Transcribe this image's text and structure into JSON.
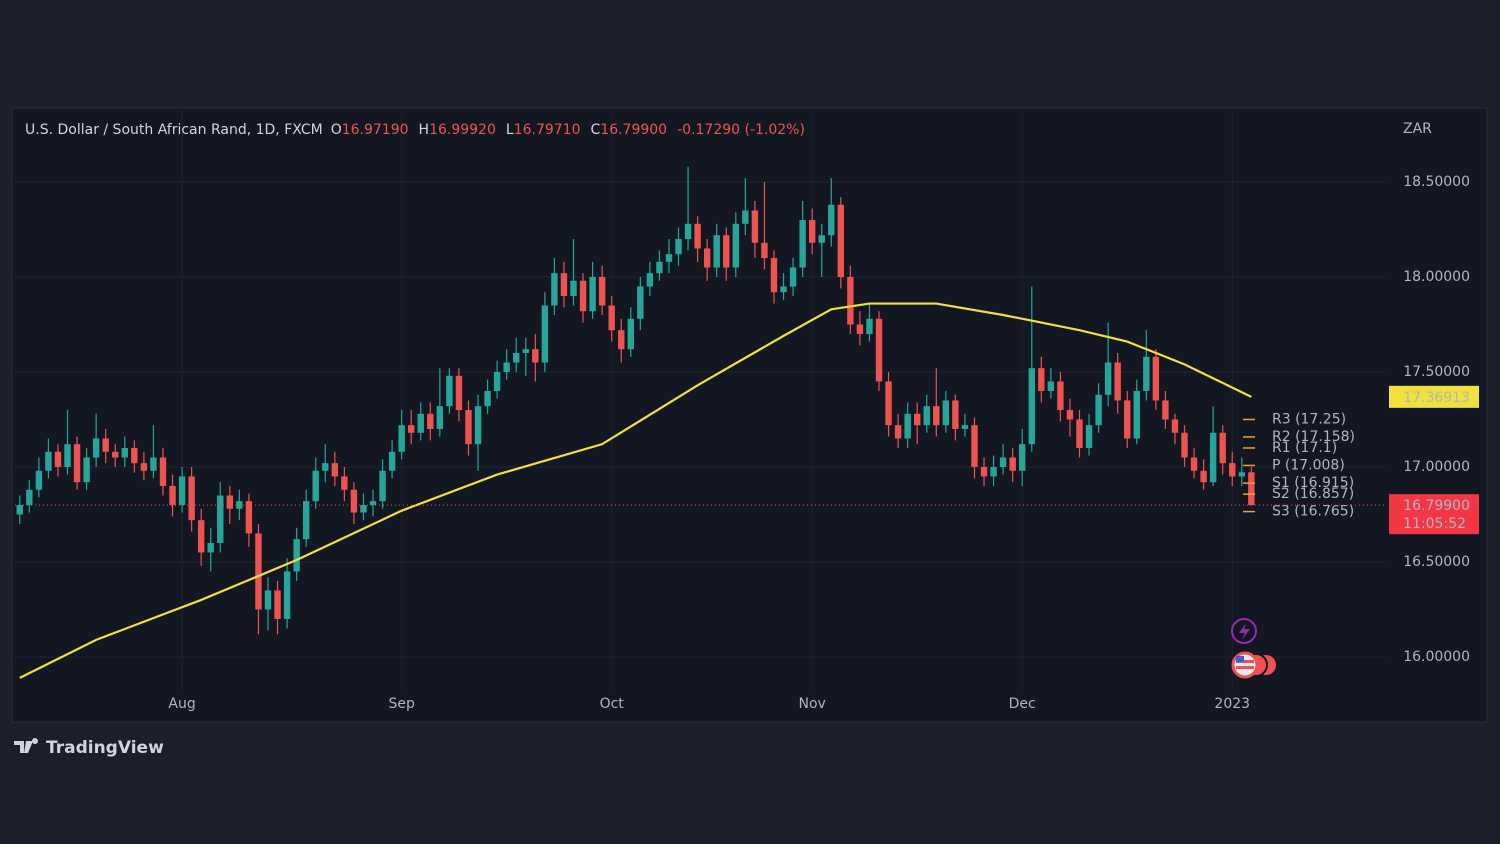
{
  "chart_data": {
    "type": "candlestick",
    "title": "U.S. Dollar / South African Rand, 1D, FXCM",
    "ohlc_legend": [
      {
        "key": "O",
        "value": "16.97190"
      },
      {
        "key": "H",
        "value": "16.99920"
      },
      {
        "key": "L",
        "value": "16.79710"
      },
      {
        "key": "C",
        "value": "16.79900"
      }
    ],
    "change": "-0.17290 (-1.02%)",
    "axis_label": "ZAR",
    "up_color": "#26a69a",
    "down_color": "#ef5350",
    "open": [
      16.75,
      16.8,
      16.88,
      16.98,
      17.08,
      17.0,
      17.12,
      16.92,
      17.05,
      17.15,
      17.08,
      17.05,
      17.1,
      17.02,
      16.98,
      17.05,
      16.9,
      16.8,
      16.95,
      16.72,
      16.55,
      16.6,
      16.85,
      16.78,
      16.82,
      16.65,
      16.25,
      16.35,
      16.2,
      16.45,
      16.62,
      16.82,
      16.98,
      17.02,
      16.95,
      16.88,
      16.76,
      16.8,
      16.82,
      16.98,
      17.08,
      17.22,
      17.18,
      17.28,
      17.2,
      17.32,
      17.48,
      17.3,
      17.12,
      17.32,
      17.4,
      17.5,
      17.55,
      17.6,
      17.62,
      17.55,
      17.85,
      18.02,
      17.9,
      17.98,
      17.82,
      18.0,
      17.85,
      17.72,
      17.62,
      17.78,
      17.95,
      18.02,
      18.08,
      18.12,
      18.2,
      18.28,
      18.15,
      18.05,
      18.22,
      18.05,
      18.28,
      18.35,
      18.18,
      18.1,
      17.92,
      17.95,
      18.05,
      18.3,
      18.18,
      18.22,
      18.38,
      18.0,
      17.75,
      17.7,
      17.78,
      17.45,
      17.22,
      17.15,
      17.28,
      17.22,
      17.32,
      17.22,
      17.35,
      17.2,
      17.22,
      17.0,
      16.95,
      17.0,
      17.05,
      16.98,
      17.12,
      17.52,
      17.4,
      17.45,
      17.3,
      17.25,
      17.1,
      17.22,
      17.38,
      17.55,
      17.35,
      17.15,
      17.4,
      17.58,
      17.35,
      17.25,
      17.18,
      17.05,
      16.98,
      16.92,
      17.18,
      17.02,
      16.95,
      16.9719
    ],
    "high": [
      16.85,
      16.93,
      17.05,
      17.15,
      17.12,
      17.3,
      17.16,
      17.1,
      17.28,
      17.2,
      17.12,
      17.16,
      17.14,
      17.08,
      17.22,
      17.1,
      16.96,
      17.0,
      17.0,
      16.78,
      16.68,
      16.92,
      16.9,
      16.88,
      16.86,
      16.7,
      16.42,
      16.4,
      16.52,
      16.68,
      16.88,
      17.05,
      17.12,
      17.08,
      17.0,
      16.92,
      16.86,
      16.88,
      17.04,
      17.14,
      17.3,
      17.3,
      17.34,
      17.34,
      17.52,
      17.52,
      17.52,
      17.35,
      17.38,
      17.46,
      17.56,
      17.62,
      17.68,
      17.68,
      17.7,
      17.92,
      18.1,
      18.08,
      18.2,
      18.02,
      18.08,
      18.06,
      17.9,
      17.78,
      17.84,
      18.0,
      18.08,
      18.14,
      18.2,
      18.26,
      18.58,
      18.32,
      18.2,
      18.28,
      18.26,
      18.34,
      18.52,
      18.4,
      18.5,
      18.14,
      18.02,
      18.1,
      18.4,
      18.36,
      18.28,
      18.52,
      18.42,
      18.06,
      17.82,
      17.86,
      17.82,
      17.5,
      17.28,
      17.34,
      17.34,
      17.38,
      17.52,
      17.4,
      17.38,
      17.28,
      17.26,
      17.05,
      17.06,
      17.12,
      17.1,
      17.2,
      17.95,
      17.58,
      17.52,
      17.5,
      17.36,
      17.3,
      17.28,
      17.44,
      17.76,
      17.6,
      17.4,
      17.46,
      17.72,
      17.62,
      17.4,
      17.28,
      17.22,
      17.1,
      17.04,
      17.32,
      17.22,
      17.08,
      17.05,
      16.9992
    ],
    "low": [
      16.7,
      16.76,
      16.84,
      16.94,
      16.95,
      16.96,
      16.88,
      16.88,
      17.0,
      17.02,
      17.0,
      17.0,
      16.97,
      16.93,
      16.94,
      16.85,
      16.74,
      16.76,
      16.66,
      16.48,
      16.45,
      16.55,
      16.7,
      16.72,
      16.58,
      16.12,
      16.14,
      16.12,
      16.15,
      16.4,
      16.58,
      16.78,
      16.92,
      16.9,
      16.82,
      16.7,
      16.72,
      16.74,
      16.78,
      16.94,
      17.04,
      17.12,
      17.14,
      17.14,
      17.16,
      17.28,
      17.24,
      17.06,
      16.98,
      17.28,
      17.36,
      17.46,
      17.5,
      17.48,
      17.45,
      17.5,
      17.8,
      17.84,
      17.85,
      17.76,
      17.78,
      17.8,
      17.66,
      17.55,
      17.58,
      17.72,
      17.9,
      17.98,
      18.02,
      18.06,
      18.14,
      18.08,
      17.98,
      18.0,
      17.98,
      18.0,
      18.22,
      18.1,
      18.04,
      17.86,
      17.88,
      17.9,
      18.0,
      18.12,
      18.0,
      18.16,
      17.94,
      17.7,
      17.64,
      17.66,
      17.4,
      17.16,
      17.1,
      17.1,
      17.12,
      17.18,
      17.16,
      17.18,
      17.14,
      17.16,
      16.94,
      16.9,
      16.9,
      16.96,
      16.92,
      16.9,
      17.08,
      17.34,
      17.36,
      17.24,
      17.16,
      17.05,
      17.06,
      17.18,
      17.32,
      17.28,
      17.1,
      17.12,
      17.35,
      17.3,
      17.2,
      17.12,
      17.0,
      16.94,
      16.88,
      16.9,
      16.96,
      16.9,
      16.9,
      16.7971
    ],
    "close": [
      16.8,
      16.88,
      16.98,
      17.08,
      17.0,
      17.12,
      16.92,
      17.05,
      17.15,
      17.08,
      17.05,
      17.1,
      17.02,
      16.98,
      17.05,
      16.9,
      16.8,
      16.95,
      16.72,
      16.55,
      16.6,
      16.85,
      16.78,
      16.82,
      16.65,
      16.25,
      16.35,
      16.2,
      16.45,
      16.62,
      16.82,
      16.98,
      17.02,
      16.95,
      16.88,
      16.76,
      16.8,
      16.82,
      16.98,
      17.08,
      17.22,
      17.18,
      17.28,
      17.2,
      17.32,
      17.48,
      17.3,
      17.12,
      17.32,
      17.4,
      17.5,
      17.55,
      17.6,
      17.62,
      17.55,
      17.85,
      18.02,
      17.9,
      17.98,
      17.82,
      18.0,
      17.85,
      17.72,
      17.62,
      17.78,
      17.95,
      18.02,
      18.08,
      18.12,
      18.2,
      18.28,
      18.15,
      18.05,
      18.22,
      18.05,
      18.28,
      18.35,
      18.18,
      18.1,
      17.92,
      17.95,
      18.05,
      18.3,
      18.18,
      18.22,
      18.38,
      18.0,
      17.75,
      17.7,
      17.78,
      17.45,
      17.22,
      17.15,
      17.28,
      17.22,
      17.32,
      17.22,
      17.35,
      17.2,
      17.22,
      17.0,
      16.95,
      17.0,
      17.05,
      16.98,
      17.12,
      17.52,
      17.4,
      17.45,
      17.3,
      17.25,
      17.1,
      17.22,
      17.38,
      17.55,
      17.35,
      17.15,
      17.4,
      17.58,
      17.35,
      17.25,
      17.18,
      17.05,
      16.98,
      16.92,
      17.18,
      17.02,
      16.95,
      16.9719,
      16.799
    ],
    "moving_average": {
      "color": "#f2e03c",
      "x": [
        0,
        8,
        19,
        29,
        40,
        50,
        61,
        71,
        80,
        85,
        89,
        96,
        103,
        111,
        116,
        122,
        129
      ],
      "values": [
        15.89,
        16.09,
        16.3,
        16.51,
        16.77,
        16.96,
        17.12,
        17.43,
        17.69,
        17.83,
        17.86,
        17.86,
        17.8,
        17.72,
        17.66,
        17.54,
        17.36913
      ]
    },
    "last_price_label": "16.79900",
    "countdown": "11:05:52",
    "pivots": {
      "color": "#f0a030",
      "levels": [
        {
          "value": 17.25,
          "label": "R3 (17.25)"
        },
        {
          "value": 17.158,
          "label": "R2 (17.158)"
        },
        {
          "value": 17.1,
          "label": "R1 (17.1)"
        },
        {
          "value": 17.008,
          "label": "P (17.008)"
        },
        {
          "value": 16.915,
          "label": "S1 (16.915)"
        },
        {
          "value": 16.857,
          "label": "S2 (16.857)"
        },
        {
          "value": 16.765,
          "label": "S3 (16.765)"
        }
      ]
    },
    "xlim": [
      -0.5,
      143
    ],
    "xticks": [
      {
        "value": 17,
        "label": "Aug"
      },
      {
        "value": 40,
        "label": "Sep"
      },
      {
        "value": 62,
        "label": "Oct"
      },
      {
        "value": 83,
        "label": "Nov"
      },
      {
        "value": 105,
        "label": "Dec"
      },
      {
        "value": 127,
        "label": "2023"
      }
    ],
    "ylim": [
      15.826,
      18.879
    ],
    "yticks": [
      {
        "value": 16,
        "label": "16.00000"
      },
      {
        "value": 16.5,
        "label": "16.50000"
      },
      {
        "value": 17,
        "label": "17.00000"
      },
      {
        "value": 17.5,
        "label": "17.50000"
      },
      {
        "value": 18,
        "label": "18.00000"
      },
      {
        "value": 18.5,
        "label": "18.50000"
      }
    ],
    "grid": true
  },
  "branding": "TradingView"
}
